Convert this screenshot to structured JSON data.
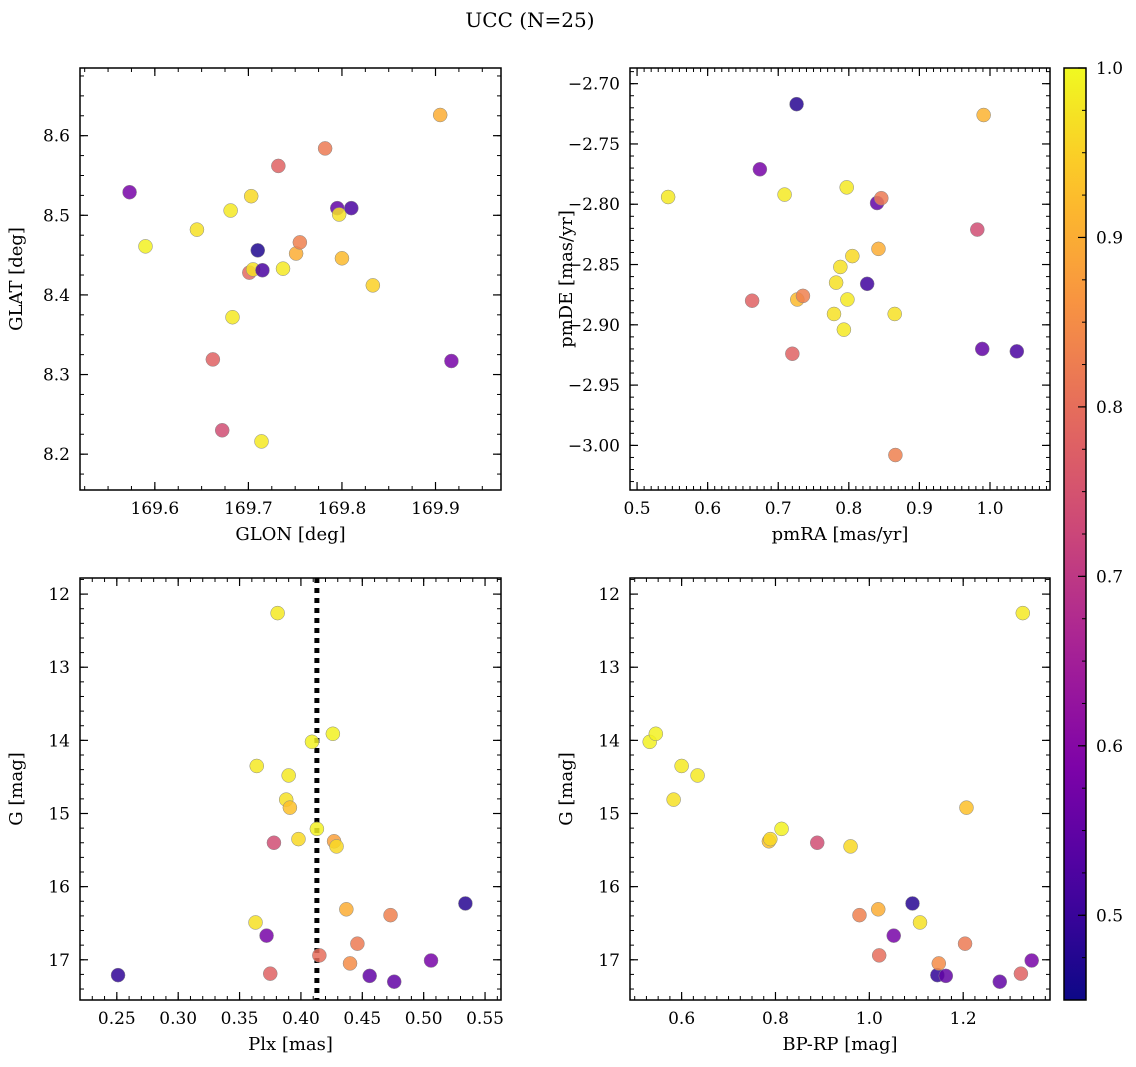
{
  "figure": {
    "title": "UCC (N=25)"
  },
  "colorbar": {
    "colormap": "plasma",
    "vmin": 0.45,
    "vmax": 1.0,
    "ticks": [
      "0.5",
      "0.6",
      "0.7",
      "0.8",
      "0.9",
      "1.0"
    ]
  },
  "chart_data": [
    {
      "type": "scatter",
      "xlabel": "GLON [deg]",
      "ylabel": "GLAT [deg]",
      "xlim": [
        169.52,
        169.97
      ],
      "ylim": [
        8.155,
        8.685
      ],
      "xticks": [
        "169.6",
        "169.7",
        "169.8",
        "169.9"
      ],
      "yticks": [
        "8.2",
        "8.3",
        "8.4",
        "8.5",
        "8.6"
      ],
      "points": [
        {
          "x": 169.573,
          "y": 8.529,
          "c": 0.58
        },
        {
          "x": 169.59,
          "y": 8.461,
          "c": 0.99
        },
        {
          "x": 169.645,
          "y": 8.482,
          "c": 0.97
        },
        {
          "x": 169.662,
          "y": 8.319,
          "c": 0.78
        },
        {
          "x": 169.672,
          "y": 8.23,
          "c": 0.74
        },
        {
          "x": 169.681,
          "y": 8.506,
          "c": 0.98
        },
        {
          "x": 169.683,
          "y": 8.372,
          "c": 0.98
        },
        {
          "x": 169.701,
          "y": 8.428,
          "c": 0.79
        },
        {
          "x": 169.703,
          "y": 8.524,
          "c": 0.96
        },
        {
          "x": 169.705,
          "y": 8.432,
          "c": 0.97
        },
        {
          "x": 169.71,
          "y": 8.456,
          "c": 0.47
        },
        {
          "x": 169.714,
          "y": 8.216,
          "c": 0.98
        },
        {
          "x": 169.715,
          "y": 8.431,
          "c": 0.52
        },
        {
          "x": 169.732,
          "y": 8.562,
          "c": 0.78
        },
        {
          "x": 169.737,
          "y": 8.433,
          "c": 0.98
        },
        {
          "x": 169.751,
          "y": 8.452,
          "c": 0.9
        },
        {
          "x": 169.755,
          "y": 8.466,
          "c": 0.83
        },
        {
          "x": 169.782,
          "y": 8.584,
          "c": 0.82
        },
        {
          "x": 169.795,
          "y": 8.509,
          "c": 0.55
        },
        {
          "x": 169.797,
          "y": 8.501,
          "c": 0.97
        },
        {
          "x": 169.8,
          "y": 8.446,
          "c": 0.92
        },
        {
          "x": 169.81,
          "y": 8.509,
          "c": 0.52
        },
        {
          "x": 169.833,
          "y": 8.412,
          "c": 0.95
        },
        {
          "x": 169.905,
          "y": 8.626,
          "c": 0.9
        },
        {
          "x": 169.917,
          "y": 8.317,
          "c": 0.58
        }
      ]
    },
    {
      "type": "scatter",
      "xlabel": "pmRA [mas/yr]",
      "ylabel": "pmDE [mas/yr]",
      "xlim": [
        0.49,
        1.085
      ],
      "ylim": [
        -3.037,
        -2.687
      ],
      "xticks": [
        "0.5",
        "0.6",
        "0.7",
        "0.8",
        "0.9",
        "1.0"
      ],
      "yticks": [
        "−2.70",
        "−2.75",
        "−2.80",
        "−2.85",
        "−2.90",
        "−2.95",
        "−3.00"
      ],
      "points": [
        {
          "x": 0.544,
          "y": -2.794,
          "c": 0.98
        },
        {
          "x": 0.663,
          "y": -2.88,
          "c": 0.78
        },
        {
          "x": 0.674,
          "y": -2.771,
          "c": 0.58
        },
        {
          "x": 0.709,
          "y": -2.792,
          "c": 0.98
        },
        {
          "x": 0.72,
          "y": -2.924,
          "c": 0.78
        },
        {
          "x": 0.726,
          "y": -2.717,
          "c": 0.48
        },
        {
          "x": 0.727,
          "y": -2.879,
          "c": 0.92
        },
        {
          "x": 0.735,
          "y": -2.876,
          "c": 0.83
        },
        {
          "x": 0.779,
          "y": -2.891,
          "c": 0.97
        },
        {
          "x": 0.782,
          "y": -2.865,
          "c": 0.97
        },
        {
          "x": 0.788,
          "y": -2.852,
          "c": 0.97
        },
        {
          "x": 0.793,
          "y": -2.904,
          "c": 0.98
        },
        {
          "x": 0.797,
          "y": -2.786,
          "c": 0.98
        },
        {
          "x": 0.798,
          "y": -2.879,
          "c": 0.98
        },
        {
          "x": 0.805,
          "y": -2.843,
          "c": 0.96
        },
        {
          "x": 0.826,
          "y": -2.866,
          "c": 0.51
        },
        {
          "x": 0.84,
          "y": -2.799,
          "c": 0.55
        },
        {
          "x": 0.842,
          "y": -2.837,
          "c": 0.9
        },
        {
          "x": 0.846,
          "y": -2.795,
          "c": 0.82
        },
        {
          "x": 0.865,
          "y": -2.891,
          "c": 0.97
        },
        {
          "x": 0.866,
          "y": -3.008,
          "c": 0.83
        },
        {
          "x": 0.982,
          "y": -2.821,
          "c": 0.74
        },
        {
          "x": 0.989,
          "y": -2.92,
          "c": 0.55
        },
        {
          "x": 0.991,
          "y": -2.726,
          "c": 0.91
        },
        {
          "x": 1.038,
          "y": -2.922,
          "c": 0.52
        }
      ]
    },
    {
      "type": "scatter",
      "xlabel": "Plx [mas]",
      "ylabel": "G [mag]",
      "xlim": [
        0.22,
        0.563
      ],
      "ylim": [
        17.55,
        11.78
      ],
      "y_inverted": true,
      "xticks": [
        "0.25",
        "0.30",
        "0.35",
        "0.40",
        "0.45",
        "0.50",
        "0.55"
      ],
      "yticks": [
        "12",
        "13",
        "14",
        "15",
        "16",
        "17"
      ],
      "vline": {
        "x": 0.413,
        "style": "dotted"
      },
      "points": [
        {
          "x": 0.251,
          "y": 17.21,
          "c": 0.49
        },
        {
          "x": 0.363,
          "y": 16.49,
          "c": 0.97
        },
        {
          "x": 0.364,
          "y": 14.35,
          "c": 0.98
        },
        {
          "x": 0.372,
          "y": 16.67,
          "c": 0.58
        },
        {
          "x": 0.375,
          "y": 17.19,
          "c": 0.78
        },
        {
          "x": 0.378,
          "y": 15.4,
          "c": 0.74
        },
        {
          "x": 0.381,
          "y": 12.26,
          "c": 0.98
        },
        {
          "x": 0.388,
          "y": 14.81,
          "c": 0.97
        },
        {
          "x": 0.39,
          "y": 14.48,
          "c": 0.98
        },
        {
          "x": 0.391,
          "y": 14.92,
          "c": 0.93
        },
        {
          "x": 0.398,
          "y": 15.35,
          "c": 0.96
        },
        {
          "x": 0.409,
          "y": 14.02,
          "c": 0.99
        },
        {
          "x": 0.413,
          "y": 15.21,
          "c": 0.99
        },
        {
          "x": 0.415,
          "y": 16.94,
          "c": 0.8
        },
        {
          "x": 0.426,
          "y": 13.91,
          "c": 0.99
        },
        {
          "x": 0.427,
          "y": 15.38,
          "c": 0.88
        },
        {
          "x": 0.429,
          "y": 15.45,
          "c": 0.96
        },
        {
          "x": 0.437,
          "y": 16.31,
          "c": 0.9
        },
        {
          "x": 0.44,
          "y": 17.05,
          "c": 0.85
        },
        {
          "x": 0.446,
          "y": 16.78,
          "c": 0.82
        },
        {
          "x": 0.456,
          "y": 17.22,
          "c": 0.55
        },
        {
          "x": 0.473,
          "y": 16.39,
          "c": 0.83
        },
        {
          "x": 0.476,
          "y": 17.3,
          "c": 0.55
        },
        {
          "x": 0.506,
          "y": 17.01,
          "c": 0.58
        },
        {
          "x": 0.534,
          "y": 16.23,
          "c": 0.48
        }
      ]
    },
    {
      "type": "scatter",
      "xlabel": "BP-RP [mag]",
      "ylabel": "G [mag]",
      "xlim": [
        0.49,
        1.385
      ],
      "ylim": [
        17.55,
        11.78
      ],
      "y_inverted": true,
      "xticks": [
        "0.6",
        "0.8",
        "1.0",
        "1.2"
      ],
      "yticks": [
        "12",
        "13",
        "14",
        "15",
        "16",
        "17"
      ],
      "points": [
        {
          "x": 0.532,
          "y": 14.02,
          "c": 0.99
        },
        {
          "x": 0.545,
          "y": 13.91,
          "c": 0.99
        },
        {
          "x": 0.583,
          "y": 14.81,
          "c": 0.97
        },
        {
          "x": 0.6,
          "y": 14.35,
          "c": 0.98
        },
        {
          "x": 0.634,
          "y": 14.48,
          "c": 0.98
        },
        {
          "x": 0.786,
          "y": 15.38,
          "c": 0.93
        },
        {
          "x": 0.789,
          "y": 15.35,
          "c": 0.96
        },
        {
          "x": 0.813,
          "y": 15.21,
          "c": 0.99
        },
        {
          "x": 0.889,
          "y": 15.4,
          "c": 0.74
        },
        {
          "x": 0.96,
          "y": 15.45,
          "c": 0.96
        },
        {
          "x": 0.979,
          "y": 16.39,
          "c": 0.83
        },
        {
          "x": 1.019,
          "y": 16.31,
          "c": 0.9
        },
        {
          "x": 1.021,
          "y": 16.94,
          "c": 0.8
        },
        {
          "x": 1.052,
          "y": 16.67,
          "c": 0.58
        },
        {
          "x": 1.092,
          "y": 16.23,
          "c": 0.48
        },
        {
          "x": 1.108,
          "y": 16.49,
          "c": 0.97
        },
        {
          "x": 1.145,
          "y": 17.21,
          "c": 0.49
        },
        {
          "x": 1.148,
          "y": 17.05,
          "c": 0.85
        },
        {
          "x": 1.163,
          "y": 17.22,
          "c": 0.55
        },
        {
          "x": 1.204,
          "y": 16.78,
          "c": 0.82
        },
        {
          "x": 1.207,
          "y": 14.92,
          "c": 0.93
        },
        {
          "x": 1.278,
          "y": 17.3,
          "c": 0.55
        },
        {
          "x": 1.323,
          "y": 17.19,
          "c": 0.78
        },
        {
          "x": 1.327,
          "y": 12.26,
          "c": 0.98
        },
        {
          "x": 1.346,
          "y": 17.01,
          "c": 0.58
        }
      ]
    }
  ]
}
